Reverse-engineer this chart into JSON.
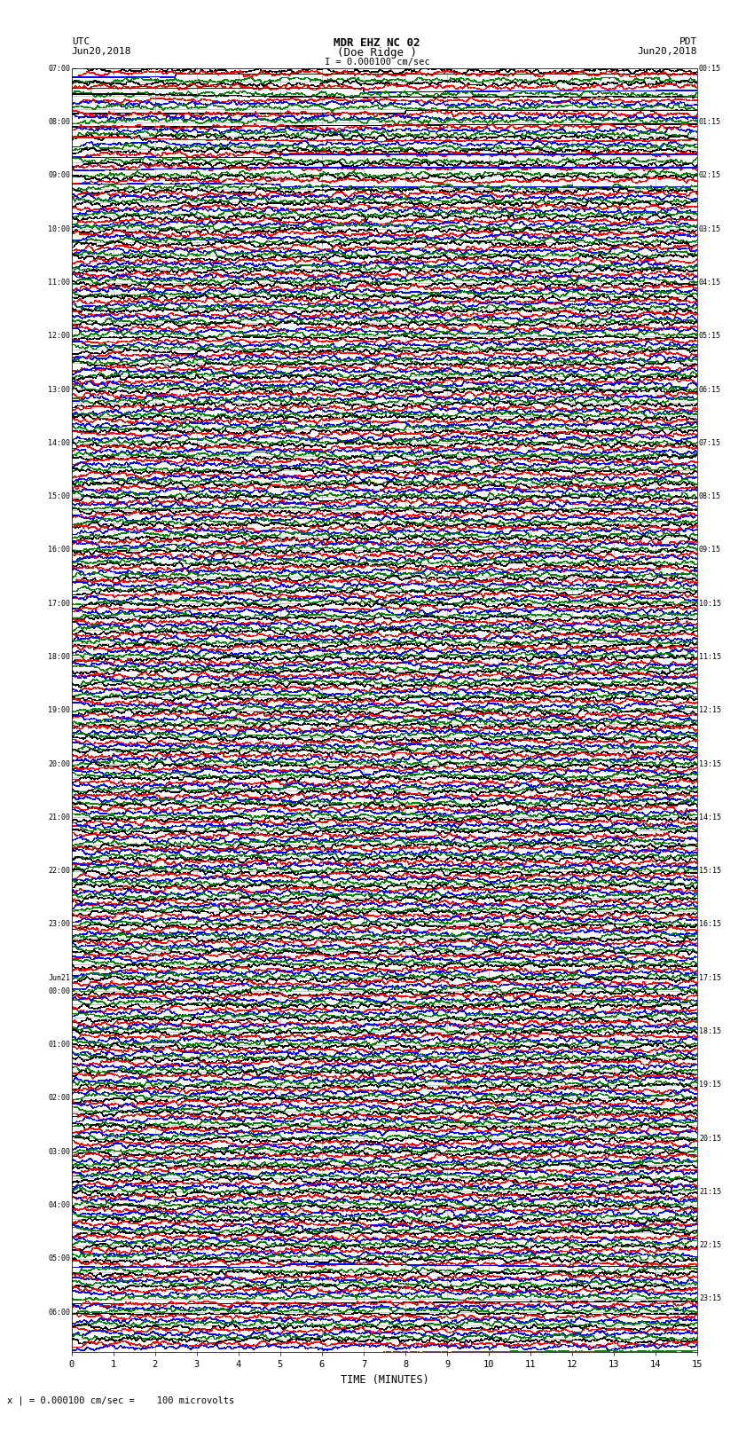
{
  "title_line1": "MDR EHZ NC 02",
  "title_line2": "(Doe Ridge )",
  "title_line3": "I = 0.000100 cm/sec",
  "label_utc": "UTC",
  "label_date_left": "Jun20,2018",
  "label_pdt": "PDT",
  "label_date_right": "Jun20,2018",
  "xlabel": "TIME (MINUTES)",
  "footer": "x | = 0.000100 cm/sec =    100 microvolts",
  "left_times": [
    "07:00",
    "",
    "",
    "",
    "08:00",
    "",
    "",
    "",
    "09:00",
    "",
    "",
    "",
    "10:00",
    "",
    "",
    "",
    "11:00",
    "",
    "",
    "",
    "12:00",
    "",
    "",
    "",
    "13:00",
    "",
    "",
    "",
    "14:00",
    "",
    "",
    "",
    "15:00",
    "",
    "",
    "",
    "16:00",
    "",
    "",
    "",
    "17:00",
    "",
    "",
    "",
    "18:00",
    "",
    "",
    "",
    "19:00",
    "",
    "",
    "",
    "20:00",
    "",
    "",
    "",
    "21:00",
    "",
    "",
    "",
    "22:00",
    "",
    "",
    "",
    "23:00",
    "",
    "",
    "",
    "Jun21",
    "00:00",
    "",
    "",
    "",
    "01:00",
    "",
    "",
    "",
    "02:00",
    "",
    "",
    "",
    "03:00",
    "",
    "",
    "",
    "04:00",
    "",
    "",
    "",
    "05:00",
    "",
    "",
    "",
    "06:00"
  ],
  "right_times": [
    "00:15",
    "",
    "",
    "",
    "01:15",
    "",
    "",
    "",
    "02:15",
    "",
    "",
    "",
    "03:15",
    "",
    "",
    "",
    "04:15",
    "",
    "",
    "",
    "05:15",
    "",
    "",
    "",
    "06:15",
    "",
    "",
    "",
    "07:15",
    "",
    "",
    "",
    "08:15",
    "",
    "",
    "",
    "09:15",
    "",
    "",
    "",
    "10:15",
    "",
    "",
    "",
    "11:15",
    "",
    "",
    "",
    "12:15",
    "",
    "",
    "",
    "13:15",
    "",
    "",
    "",
    "14:15",
    "",
    "",
    "",
    "15:15",
    "",
    "",
    "",
    "16:15",
    "",
    "",
    "",
    "17:15",
    "",
    "",
    "",
    "18:15",
    "",
    "",
    "",
    "19:15",
    "",
    "",
    "",
    "20:15",
    "",
    "",
    "",
    "21:15",
    "",
    "",
    "",
    "22:15",
    "",
    "",
    "",
    "23:15"
  ],
  "trace_colors": [
    "black",
    "red",
    "blue",
    "green"
  ],
  "n_rows": 96,
  "n_traces_per_row": 4,
  "minutes": 15,
  "background_color": "white",
  "grid_color": "#999999",
  "text_color": "black",
  "figwidth": 8.5,
  "figheight": 16.13,
  "dpi": 100
}
